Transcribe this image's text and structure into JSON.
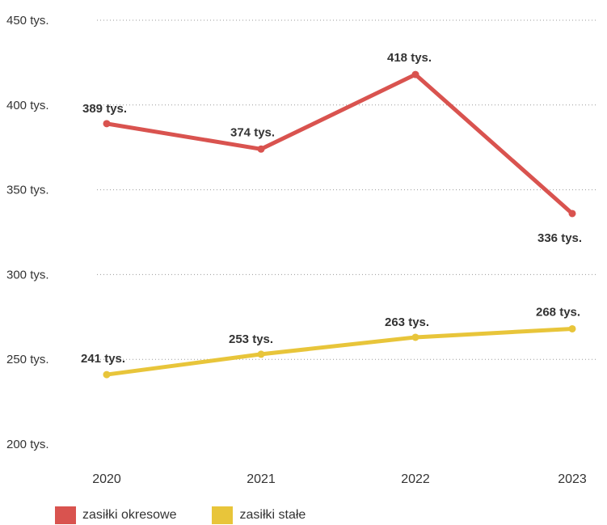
{
  "chart_data": {
    "type": "line",
    "categories": [
      "2020",
      "2021",
      "2022",
      "2023"
    ],
    "ylim": [
      200,
      450
    ],
    "y_ticks": [
      450,
      400,
      350,
      300,
      250,
      200
    ],
    "y_tick_labels": [
      "450 tys.",
      "400 tys.",
      "350 tys.",
      "300 tys.",
      "250 tys.",
      "200 tys."
    ],
    "grid": true,
    "legend_position": "bottom-left",
    "series": [
      {
        "name": "zasiłki okresowe",
        "color": "#d9534f",
        "values": [
          389,
          374,
          418,
          336
        ],
        "labels": [
          "389 tys.",
          "374 tys.",
          "418 tys.",
          "336 tys."
        ]
      },
      {
        "name": "zasiłki stałe",
        "color": "#e8c53a",
        "values": [
          241,
          253,
          263,
          268
        ],
        "labels": [
          "241 tys.",
          "253 tys.",
          "263 tys.",
          "268 tys."
        ]
      }
    ]
  }
}
